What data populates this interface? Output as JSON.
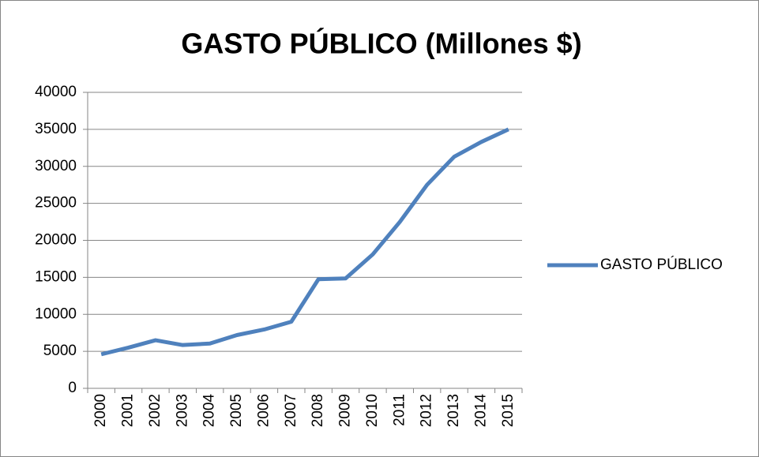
{
  "chart_data": {
    "type": "line",
    "title": "GASTO PÚBLICO (Millones $)",
    "categories": [
      "2000",
      "2001",
      "2002",
      "2003",
      "2004",
      "2005",
      "2006",
      "2007",
      "2008",
      "2009",
      "2010",
      "2011",
      "2012",
      "2013",
      "2014",
      "2015"
    ],
    "series": [
      {
        "name": "GASTO PÚBLICO",
        "color": "#4f81bd",
        "values": [
          4600,
          5500,
          6500,
          5850,
          6050,
          7200,
          7950,
          9000,
          14750,
          14850,
          18100,
          22500,
          27500,
          31300,
          33300,
          35000
        ]
      }
    ],
    "ylim": [
      0,
      40000
    ],
    "yticks": [
      0,
      5000,
      10000,
      15000,
      20000,
      25000,
      30000,
      35000,
      40000
    ],
    "grid": true,
    "legend": "right"
  }
}
